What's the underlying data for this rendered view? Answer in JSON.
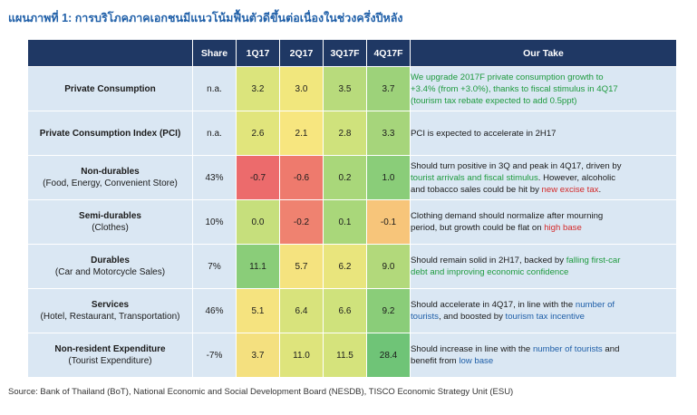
{
  "title": "แผนภาพที่ 1: การบริโภคภาคเอกชนมีแนวโน้มฟื้นตัวดีขึ้นต่อเนื่องในช่วงครึ่งปีหลัง",
  "headers": {
    "category": "",
    "share": "Share",
    "q1": "1Q17",
    "q2": "2Q17",
    "q3": "3Q17F",
    "q4": "4Q17F",
    "take": "Our Take"
  },
  "rows": [
    {
      "name": "Private Consumption",
      "sub": "",
      "share": "n.a.",
      "values": [
        "3.2",
        "3.0",
        "3.5",
        "3.7"
      ],
      "colors": [
        "#dbe47c",
        "#f1e77d",
        "#b8db7c",
        "#9dd27a"
      ],
      "take": [
        {
          "text": "We upgrade 2017F private consumption growth to",
          "style": "g"
        },
        {
          "text": "+3.4% (from +3.0%), thanks to fiscal stimulus in 4Q17",
          "style": "g"
        },
        {
          "text": "(tourism tax rebate expected to add 0.5ppt)",
          "style": "g"
        }
      ]
    },
    {
      "name": "Private Consumption Index (PCI)",
      "sub": "",
      "share": "n.a.",
      "values": [
        "2.6",
        "2.1",
        "2.8",
        "3.3"
      ],
      "colors": [
        "#e1e57c",
        "#f7e67f",
        "#cfe27c",
        "#a6d57b"
      ],
      "take": [
        {
          "text": "PCI is expected to accelerate in 2H17",
          "style": ""
        }
      ]
    },
    {
      "name": "Non-durables",
      "sub": "(Food, Energy, Convenient Store)",
      "share": "43%",
      "values": [
        "-0.7",
        "-0.6",
        "0.2",
        "1.0"
      ],
      "colors": [
        "#ec6b6c",
        "#ee7a6d",
        "#a9d77a",
        "#8acd79"
      ],
      "take": [
        {
          "text": "Should turn positive in 3Q and peak in 4Q17, driven by",
          "style": ""
        },
        {
          "segments": [
            {
              "text": "tourist arrivals and fiscal stimulus",
              "style": "g"
            },
            {
              "text": ". However, alcoholic",
              "style": ""
            }
          ]
        },
        {
          "segments": [
            {
              "text": "and tobacco sales could be hit by ",
              "style": ""
            },
            {
              "text": "new excise tax",
              "style": "r"
            },
            {
              "text": ".",
              "style": ""
            }
          ]
        }
      ]
    },
    {
      "name": "Semi-durables",
      "sub": "(Clothes)",
      "share": "10%",
      "values": [
        "0.0",
        "-0.2",
        "0.1",
        "-0.1"
      ],
      "colors": [
        "#c6df7c",
        "#ef8270",
        "#a9d77a",
        "#f7c57a"
      ],
      "take": [
        {
          "text": "Clothing demand should normalize after mourning",
          "style": ""
        },
        {
          "segments": [
            {
              "text": "period, but growth could be flat on ",
              "style": ""
            },
            {
              "text": "high base",
              "style": "r"
            }
          ]
        }
      ]
    },
    {
      "name": "Durables",
      "sub": "(Car and Motorcycle Sales)",
      "share": "7%",
      "values": [
        "11.1",
        "5.7",
        "6.2",
        "9.0"
      ],
      "colors": [
        "#8acd79",
        "#f5e37f",
        "#e9e57d",
        "#b2d97b"
      ],
      "take": [
        {
          "segments": [
            {
              "text": "Should remain solid in 2H17, backed by ",
              "style": ""
            },
            {
              "text": "falling first-car",
              "style": "g"
            }
          ]
        },
        {
          "text": "debt and improving economic confidence",
          "style": "g"
        }
      ]
    },
    {
      "name": "Services",
      "sub": "(Hotel, Restaurant, Transportation)",
      "share": "46%",
      "values": [
        "5.1",
        "6.4",
        "6.6",
        "9.2"
      ],
      "colors": [
        "#f5e37f",
        "#d8e37c",
        "#cfe27c",
        "#8acd79"
      ],
      "take": [
        {
          "segments": [
            {
              "text": "Should accelerate in 4Q17, in line with the ",
              "style": ""
            },
            {
              "text": "number of",
              "style": "b"
            }
          ]
        },
        {
          "segments": [
            {
              "text": "tourists",
              "style": "b"
            },
            {
              "text": ", and boosted by ",
              "style": ""
            },
            {
              "text": "tourism tax incentive",
              "style": "b"
            }
          ]
        }
      ]
    },
    {
      "name": "Non-resident Expenditure",
      "sub": "(Tourist Expenditure)",
      "share": "-7%",
      "values": [
        "3.7",
        "11.0",
        "11.5",
        "28.4"
      ],
      "colors": [
        "#f4e07f",
        "#dee47c",
        "#d5e37c",
        "#6fc477"
      ],
      "take": [
        {
          "segments": [
            {
              "text": "Should increase in line with the ",
              "style": ""
            },
            {
              "text": "number of tourists",
              "style": "b"
            },
            {
              "text": " and",
              "style": ""
            }
          ]
        },
        {
          "segments": [
            {
              "text": "benefit from ",
              "style": ""
            },
            {
              "text": "low base",
              "style": "b"
            }
          ]
        }
      ]
    }
  ],
  "source": "Source: Bank of Thailand (BoT), National Economic and Social Development Board (NESDB), TISCO Economic Strategy Unit (ESU)"
}
